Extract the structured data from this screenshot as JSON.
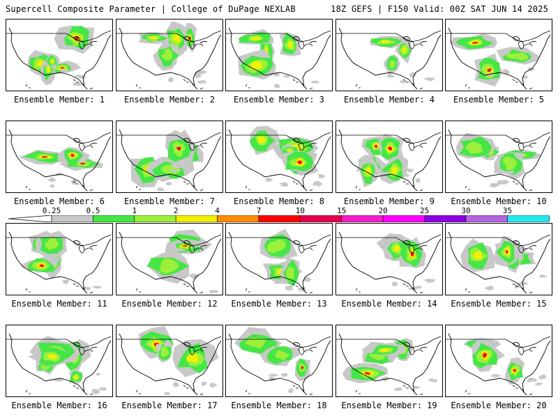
{
  "header": {
    "title": "Supercell Composite Parameter | College of DuPage NEXLAB",
    "run_info": "18Z GEFS | F150 Valid: 00Z SAT JUN 14 2025"
  },
  "colorbar": {
    "ticks": [
      "0.25",
      "0.5",
      "1",
      "2",
      "4",
      "7",
      "10",
      "15",
      "20",
      "25",
      "30",
      "35"
    ],
    "colors": [
      "#c8c8c8",
      "#46e646",
      "#9cf03c",
      "#f0f000",
      "#ff8c00",
      "#ff0000",
      "#e60050",
      "#f01ec8",
      "#ff00ff",
      "#8c00e6",
      "#b464dc",
      "#28e6f0"
    ]
  },
  "members": [
    {
      "label": "Ensemble Member: 1"
    },
    {
      "label": "Ensemble Member: 2"
    },
    {
      "label": "Ensemble Member: 3"
    },
    {
      "label": "Ensemble Member: 4"
    },
    {
      "label": "Ensemble Member: 5"
    },
    {
      "label": "Ensemble Member: 6"
    },
    {
      "label": "Ensemble Member: 7"
    },
    {
      "label": "Ensemble Member: 8"
    },
    {
      "label": "Ensemble Member: 9"
    },
    {
      "label": "Ensemble Member: 10"
    },
    {
      "label": "Ensemble Member: 11"
    },
    {
      "label": "Ensemble Member: 12"
    },
    {
      "label": "Ensemble Member: 13"
    },
    {
      "label": "Ensemble Member: 14"
    },
    {
      "label": "Ensemble Member: 15"
    },
    {
      "label": "Ensemble Member: 16"
    },
    {
      "label": "Ensemble Member: 17"
    },
    {
      "label": "Ensemble Member: 18"
    },
    {
      "label": "Ensemble Member: 19"
    },
    {
      "label": "Ensemble Member: 20"
    }
  ]
}
